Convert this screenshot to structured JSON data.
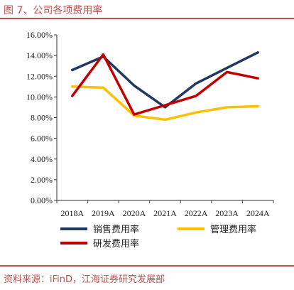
{
  "header": {
    "title": "图 7、公司各项费用率"
  },
  "footer": {
    "source": "资料来源：iFinD，江海证券研究发展部"
  },
  "chart_data": {
    "type": "line",
    "title": "",
    "xlabel": "",
    "ylabel": "",
    "x": [
      "2018A",
      "2019A",
      "2020A",
      "2021A",
      "2022A",
      "2023A",
      "2024A"
    ],
    "ylim": [
      0,
      16
    ],
    "yticks": [
      "0.00%",
      "2.00%",
      "4.00%",
      "6.00%",
      "8.00%",
      "10.00%",
      "12.00%",
      "14.00%",
      "16.00%"
    ],
    "grid": false,
    "legend_position": "bottom",
    "series": [
      {
        "name": "销售费用率",
        "color": "#1f3864",
        "values": [
          12.6,
          13.9,
          11.1,
          9.0,
          11.3,
          12.8,
          14.3
        ]
      },
      {
        "name": "管理费用率",
        "color": "#ffc000",
        "values": [
          11.0,
          10.9,
          8.2,
          7.8,
          8.5,
          9.0,
          9.1
        ]
      },
      {
        "name": "研发费用率",
        "color": "#c00000",
        "values": [
          10.1,
          14.1,
          8.3,
          9.2,
          10.1,
          12.4,
          11.8
        ]
      }
    ]
  }
}
